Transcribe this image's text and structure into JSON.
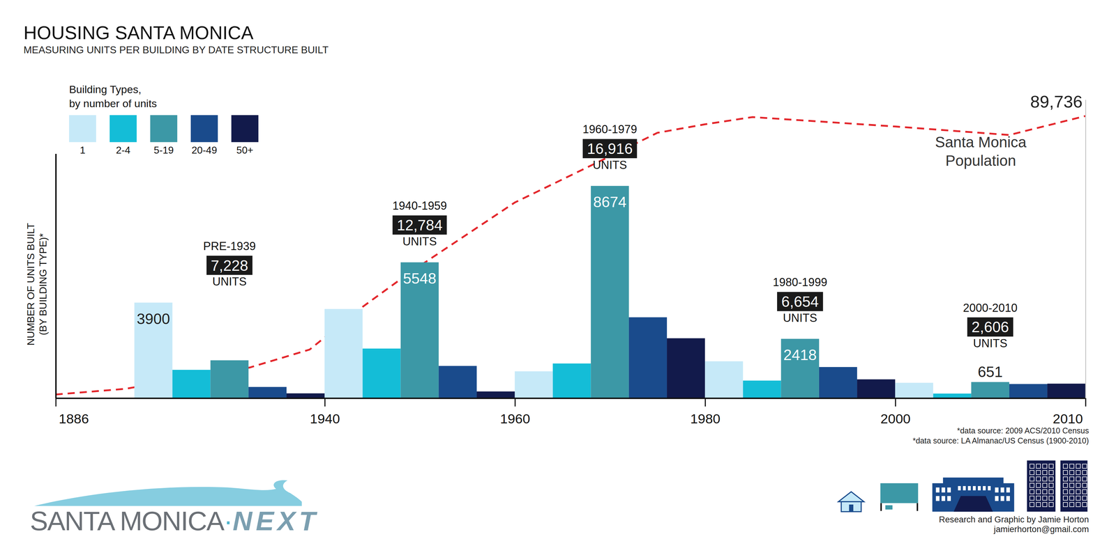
{
  "chart_data": {
    "type": "bar",
    "title": "HOUSING SANTA MONICA",
    "subtitle": "MEASURING UNITS PER BUILDING BY DATE STRUCTURE BUILT",
    "y_label": [
      "NUMBER OF UNITS BUILT",
      "(BY BUILDING TYPE)*"
    ],
    "legend_title": [
      "Building Types,",
      "by number of units"
    ],
    "legend": "top-left",
    "grid": false,
    "tick_labels": "x",
    "categories": [
      "PRE-1939",
      "1940-1959",
      "1960-1979",
      "1980-1999",
      "2000-2010"
    ],
    "group_totals": {
      "values": [
        7228,
        12784,
        16916,
        6654,
        2606
      ],
      "value_labels": [
        "7,228",
        "12,784",
        "16,916",
        "6,654",
        "2,606"
      ],
      "unit": "UNITS"
    },
    "series": [
      {
        "name": "1",
        "type": "bar",
        "color": "#c6e9f8",
        "values": [
          3900,
          3640,
          1090,
          1500,
          620
        ],
        "value_labels": [
          "3900",
          null,
          null,
          null,
          null
        ]
      },
      {
        "name": "2-4",
        "type": "bar",
        "color": "#14bdd7",
        "values": [
          1150,
          2020,
          1410,
          710,
          180
        ]
      },
      {
        "name": "5-19",
        "type": "bar",
        "color": "#3c98a6",
        "values": [
          1540,
          5548,
          8674,
          2418,
          651
        ],
        "value_labels": [
          null,
          "5548",
          "8674",
          "2418",
          "651"
        ]
      },
      {
        "name": "20-49",
        "type": "bar",
        "color": "#1a4b8c",
        "values": [
          450,
          1310,
          3300,
          1265,
          570
        ]
      },
      {
        "name": "50+",
        "type": "bar",
        "color": "#121a4b",
        "values": [
          188,
          266,
          2442,
          761,
          585
        ]
      },
      {
        "name": "Santa Monica Population",
        "type": "line",
        "axis": "y2",
        "color": "#e3262b",
        "line_style": "dashed",
        "x": [
          1886,
          1900,
          1925,
          1937,
          1944,
          1949,
          1960,
          1970,
          1975,
          1980,
          1985,
          2000,
          2006,
          2010
        ],
        "values": [
          1100,
          2900,
          9700,
          15400,
          29000,
          40000,
          62200,
          76900,
          84400,
          87100,
          89400,
          86400,
          83700,
          89736
        ],
        "value_labels": [
          null,
          null,
          null,
          null,
          null,
          null,
          null,
          null,
          null,
          null,
          null,
          null,
          null,
          "89,736"
        ]
      }
    ],
    "xlim": [
      1886,
      2010
    ],
    "xticks": [
      1886,
      1940,
      1960,
      1980,
      2000,
      2010
    ],
    "ylim": [
      0,
      10000
    ],
    "yticks": [],
    "y2lim": [
      0,
      95000
    ],
    "y2ticks": [],
    "footnotes": [
      "*data source: 2009 ACS/2010 Census",
      "*data source: LA Almanac/US Census (1900-2010)"
    ],
    "credit": [
      "Research and Graphic by Jamie Horton",
      "jamierhorton@gmail.com"
    ],
    "logo": {
      "text": "SANTA MONICA",
      "separator": "·",
      "accent": "NEXT"
    }
  }
}
